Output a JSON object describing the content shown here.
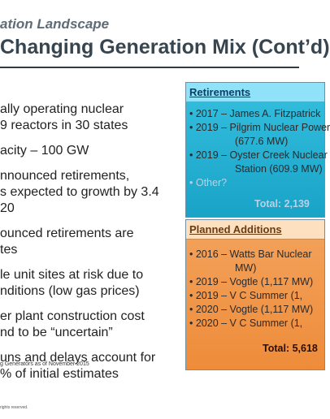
{
  "header": {
    "kicker": "ation Landscape",
    "title": "Changing Generation Mix (Cont’d)"
  },
  "bullets": [
    [
      "ally operating nuclear",
      "9 reactors in 30 states"
    ],
    [
      "acity – 100 GW"
    ],
    [
      "nnounced retirements,",
      "s expected to growth by 3.4",
      "20"
    ],
    [
      "ounced retirements are",
      "tes"
    ],
    [
      "le unit sites at risk due to",
      "nditions (low gas prices)"
    ],
    [
      "er plant construction cost",
      "nd to be “uncertain”"
    ],
    [
      "uns and delays account for",
      "% of initial estimates"
    ]
  ],
  "footnote": "g Generators as of November 2015",
  "copyright": "rights reserved.",
  "retirements": {
    "title": "Retirements",
    "items": [
      {
        "text": "• 2017 – James A. Fitzpatrick"
      },
      {
        "text": "• 2019 – Pilgrim Nuclear Power"
      },
      {
        "text": "(677.6 MW)",
        "cont": true
      },
      {
        "text": "• 2019 – Oyster Creek Nuclear"
      },
      {
        "text": "Station (609.9 MW)",
        "cont": true
      },
      {
        "text": "• Other?",
        "other": true
      }
    ],
    "total": "Total:  2,139"
  },
  "planned_additions": {
    "title": "Planned Additions",
    "items": [
      {
        "text": "• 2016 – Watts Bar Nuclear"
      },
      {
        "text": "MW)",
        "cont": true
      },
      {
        "text": "• 2019 – Vogtle (1,117 MW)"
      },
      {
        "text": "• 2019 – V C Summer (1,"
      },
      {
        "text": "• 2020 – Vogtle (1,117 MW)"
      },
      {
        "text": "• 2020 – V C Summer (1,"
      }
    ],
    "total": "Total: 5,618"
  }
}
